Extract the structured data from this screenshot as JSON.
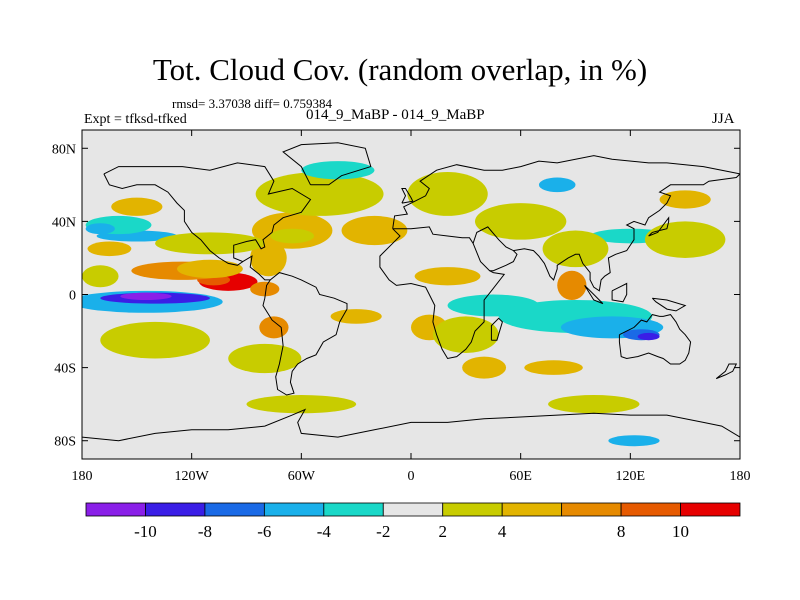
{
  "title": "Tot. Cloud Cov. (random overlap, in %)",
  "stats_line": "rmsd= 3.37038 diff= 0.759384",
  "left_label": "Expt = tfksd-tfked",
  "center_label": "014_9_MaBP - 014_9_MaBP",
  "right_label": "JJA",
  "chart_data": {
    "type": "heatmap",
    "title": "Tot. Cloud Cov. (random overlap, in %)",
    "xlim": [
      -180,
      180
    ],
    "ylim": [
      -90,
      90
    ],
    "x_ticks": [
      {
        "value": -180,
        "label": "180"
      },
      {
        "value": -120,
        "label": "120W"
      },
      {
        "value": -60,
        "label": "60W"
      },
      {
        "value": 0,
        "label": "0"
      },
      {
        "value": 60,
        "label": "60E"
      },
      {
        "value": 120,
        "label": "120E"
      },
      {
        "value": 180,
        "label": "180"
      }
    ],
    "y_ticks": [
      {
        "value": 80,
        "label": "80N"
      },
      {
        "value": 40,
        "label": "40N"
      },
      {
        "value": 0,
        "label": "0"
      },
      {
        "value": -40,
        "label": "40S"
      },
      {
        "value": -80,
        "label": "80S"
      }
    ],
    "colorbar": {
      "boundaries": [
        -12,
        -10,
        -8,
        -6,
        -4,
        -2,
        2,
        4,
        6,
        8,
        10,
        12
      ],
      "colors": [
        "#8a1fe8",
        "#3a1ee6",
        "#1a6ae6",
        "#1ab0ea",
        "#1ad8c8",
        "#e6e6e6",
        "#c8cc00",
        "#e2b400",
        "#e68a00",
        "#e65a00",
        "#e60000"
      ],
      "labels": [
        {
          "value": -10,
          "label": "-10"
        },
        {
          "value": -8,
          "label": "-8"
        },
        {
          "value": -6,
          "label": "-6"
        },
        {
          "value": -4,
          "label": "-4"
        },
        {
          "value": -2,
          "label": "-2"
        },
        {
          "value": 2,
          "label": "2"
        },
        {
          "value": 4,
          "label": "4"
        },
        {
          "value": 8,
          "label": "8"
        },
        {
          "value": 10,
          "label": "10"
        }
      ]
    },
    "regions": [
      {
        "level": 3,
        "lon": -145,
        "lat": -4,
        "rlon": 42,
        "rlat": 6
      },
      {
        "level": 1,
        "lon": -140,
        "lat": -2,
        "rlon": 30,
        "rlat": 3
      },
      {
        "level": 0,
        "lon": -145,
        "lat": -1,
        "rlon": 14,
        "rlat": 2
      },
      {
        "level": 10,
        "lon": -100,
        "lat": 7,
        "rlon": 16,
        "rlat": 5
      },
      {
        "level": 9,
        "lon": -108,
        "lat": 8,
        "rlon": 9,
        "rlat": 3
      },
      {
        "level": 8,
        "lon": -125,
        "lat": 13,
        "rlon": 28,
        "rlat": 5
      },
      {
        "level": 8,
        "lon": -80,
        "lat": 3,
        "rlon": 8,
        "rlat": 4
      },
      {
        "level": 7,
        "lon": -110,
        "lat": 14,
        "rlon": 18,
        "rlat": 5
      },
      {
        "level": 7,
        "lon": -78,
        "lat": 20,
        "rlon": 10,
        "rlat": 10
      },
      {
        "level": 4,
        "lon": 45,
        "lat": -6,
        "rlon": 25,
        "rlat": 6
      },
      {
        "level": 4,
        "lon": 90,
        "lat": -12,
        "rlon": 42,
        "rlat": 9
      },
      {
        "level": 3,
        "lon": 110,
        "lat": -18,
        "rlon": 28,
        "rlat": 6
      },
      {
        "level": 2,
        "lon": 126,
        "lat": -22,
        "rlon": 10,
        "rlat": 3
      },
      {
        "level": 1,
        "lon": 130,
        "lat": -23,
        "rlon": 6,
        "rlat": 2
      },
      {
        "level": 3,
        "lon": -150,
        "lat": 32,
        "rlon": 22,
        "rlat": 3
      },
      {
        "level": 4,
        "lon": 120,
        "lat": 32,
        "rlon": 22,
        "rlat": 4
      },
      {
        "level": 3,
        "lon": 122,
        "lat": -80,
        "rlon": 14,
        "rlat": 3
      },
      {
        "level": 8,
        "lon": -75,
        "lat": -18,
        "rlon": 8,
        "rlat": 6
      },
      {
        "level": 7,
        "lon": -65,
        "lat": 35,
        "rlon": 22,
        "rlat": 10
      },
      {
        "level": 7,
        "lon": -20,
        "lat": 35,
        "rlon": 18,
        "rlat": 8
      },
      {
        "level": 6,
        "lon": -65,
        "lat": 32,
        "rlon": 12,
        "rlat": 4
      },
      {
        "level": 7,
        "lon": 20,
        "lat": 10,
        "rlon": 18,
        "rlat": 5
      },
      {
        "level": 8,
        "lon": 88,
        "lat": 5,
        "rlon": 8,
        "rlat": 8
      },
      {
        "level": 7,
        "lon": 40,
        "lat": -40,
        "rlon": 12,
        "rlat": 6
      },
      {
        "level": 7,
        "lon": 10,
        "lat": -18,
        "rlon": 10,
        "rlat": 7
      },
      {
        "level": 7,
        "lon": -150,
        "lat": 48,
        "rlon": 14,
        "rlat": 5
      },
      {
        "level": 7,
        "lon": -165,
        "lat": 25,
        "rlon": 12,
        "rlat": 4
      },
      {
        "level": 7,
        "lon": -30,
        "lat": -12,
        "rlon": 14,
        "rlat": 4
      },
      {
        "level": 7,
        "lon": 78,
        "lat": -40,
        "rlon": 16,
        "rlat": 4
      },
      {
        "level": 6,
        "lon": -110,
        "lat": 28,
        "rlon": 30,
        "rlat": 6
      },
      {
        "level": 6,
        "lon": -50,
        "lat": 55,
        "rlon": 35,
        "rlat": 12
      },
      {
        "level": 6,
        "lon": 20,
        "lat": 55,
        "rlon": 22,
        "rlat": 12
      },
      {
        "level": 6,
        "lon": 60,
        "lat": 40,
        "rlon": 25,
        "rlat": 10
      },
      {
        "level": 6,
        "lon": 30,
        "lat": -22,
        "rlon": 18,
        "rlat": 10
      },
      {
        "level": 6,
        "lon": -140,
        "lat": -25,
        "rlon": 30,
        "rlat": 10
      },
      {
        "level": 6,
        "lon": -80,
        "lat": -35,
        "rlon": 20,
        "rlat": 8
      },
      {
        "level": 6,
        "lon": 150,
        "lat": 30,
        "rlon": 22,
        "rlat": 10
      },
      {
        "level": 6,
        "lon": 90,
        "lat": 25,
        "rlon": 18,
        "rlat": 10
      },
      {
        "level": 6,
        "lon": -60,
        "lat": -60,
        "rlon": 30,
        "rlat": 5
      },
      {
        "level": 6,
        "lon": 100,
        "lat": -60,
        "rlon": 25,
        "rlat": 5
      },
      {
        "level": 6,
        "lon": -170,
        "lat": 10,
        "rlon": 10,
        "rlat": 6
      },
      {
        "level": 4,
        "lon": -160,
        "lat": 38,
        "rlon": 18,
        "rlat": 5
      },
      {
        "level": 3,
        "lon": -170,
        "lat": 36,
        "rlon": 8,
        "rlat": 3
      },
      {
        "level": 4,
        "lon": -40,
        "lat": 68,
        "rlon": 20,
        "rlat": 5
      },
      {
        "level": 7,
        "lon": 150,
        "lat": 52,
        "rlon": 14,
        "rlat": 5
      },
      {
        "level": 3,
        "lon": 80,
        "lat": 60,
        "rlon": 10,
        "rlat": 4
      }
    ]
  }
}
